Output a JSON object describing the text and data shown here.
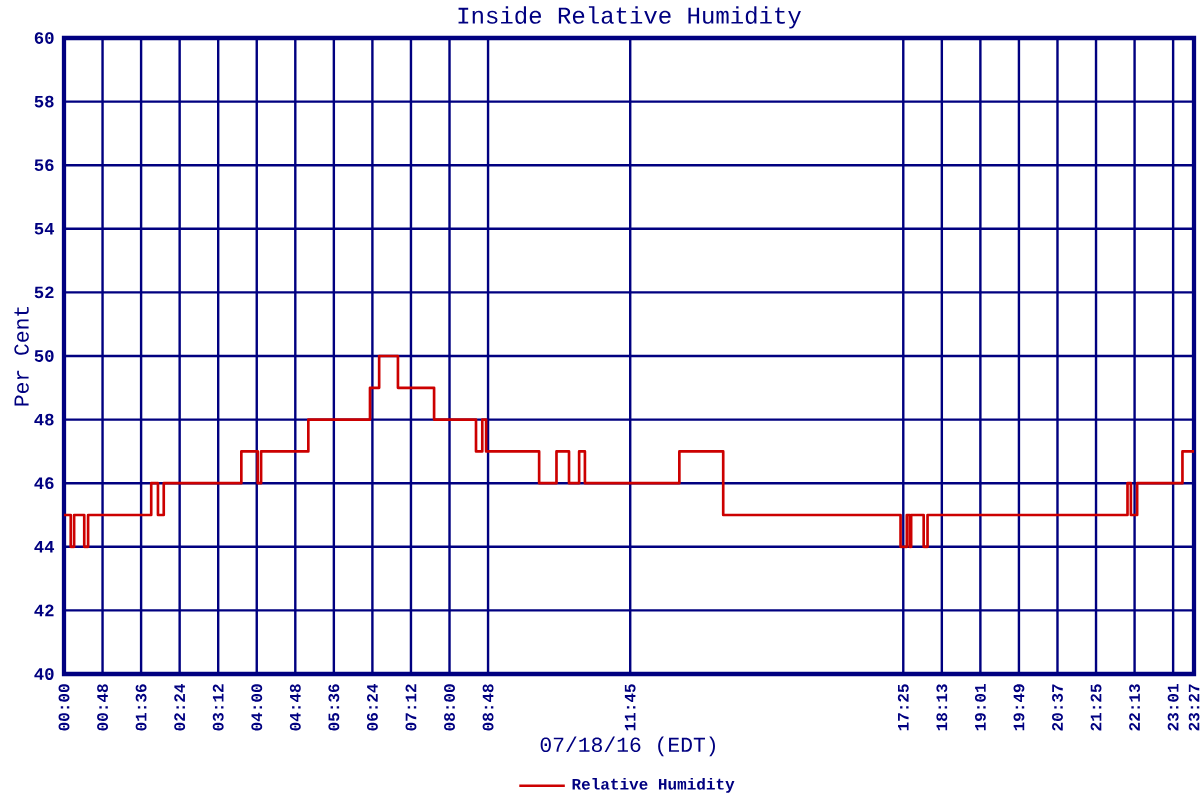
{
  "chart_data": {
    "type": "step",
    "title": "Inside Relative Humidity",
    "xlabel": "07/18/16 (EDT)",
    "ylabel": "Per Cent",
    "x": [
      0,
      0.14,
      0.21,
      0.42,
      0.5,
      1.81,
      1.95,
      2.07,
      3.68,
      4.02,
      4.09,
      5.07,
      6.35,
      6.54,
      6.93,
      7.68,
      8.55,
      8.68,
      8.76,
      9.86,
      10.22,
      10.48,
      10.69,
      10.81,
      12.77,
      13.68,
      17.36,
      17.49,
      17.55,
      17.58,
      17.84,
      17.92,
      22.07,
      22.14,
      22.27,
      23.21,
      23.45
    ],
    "series": [
      {
        "name": "Relative Humidity",
        "color": "#cc0000",
        "values": [
          45,
          44,
          45,
          44,
          45,
          46,
          45,
          46,
          47,
          46,
          47,
          48,
          49,
          50,
          49,
          48,
          47,
          48,
          47,
          46,
          47,
          46,
          47,
          46,
          47,
          45,
          44,
          45,
          44,
          45,
          44,
          45,
          46,
          45,
          46,
          47,
          47
        ]
      }
    ],
    "xlim": [
      0,
      23.45
    ],
    "xticks": [
      {
        "value": 0,
        "label": "00:00"
      },
      {
        "value": 0.8,
        "label": "00:48"
      },
      {
        "value": 1.6,
        "label": "01:36"
      },
      {
        "value": 2.4,
        "label": "02:24"
      },
      {
        "value": 3.2,
        "label": "03:12"
      },
      {
        "value": 4,
        "label": "04:00"
      },
      {
        "value": 4.8,
        "label": "04:48"
      },
      {
        "value": 5.6,
        "label": "05:36"
      },
      {
        "value": 6.4,
        "label": "06:24"
      },
      {
        "value": 7.2,
        "label": "07:12"
      },
      {
        "value": 8,
        "label": "08:00"
      },
      {
        "value": 8.8,
        "label": "08:48"
      },
      {
        "value": 11.75,
        "label": "11:45"
      },
      {
        "value": 17.4167,
        "label": "17:25"
      },
      {
        "value": 18.2167,
        "label": "18:13"
      },
      {
        "value": 19.0167,
        "label": "19:01"
      },
      {
        "value": 19.8167,
        "label": "19:49"
      },
      {
        "value": 20.6167,
        "label": "20:37"
      },
      {
        "value": 21.4167,
        "label": "21:25"
      },
      {
        "value": 22.2167,
        "label": "22:13"
      },
      {
        "value": 23.0167,
        "label": "23:01"
      },
      {
        "value": 23.45,
        "label": "23:27"
      }
    ],
    "ylim": [
      40,
      60
    ],
    "yticks": [
      40,
      42,
      44,
      46,
      48,
      50,
      52,
      54,
      56,
      58,
      60
    ],
    "grid": true,
    "legend": "bottom",
    "marker": "none",
    "line_style": "solid"
  }
}
